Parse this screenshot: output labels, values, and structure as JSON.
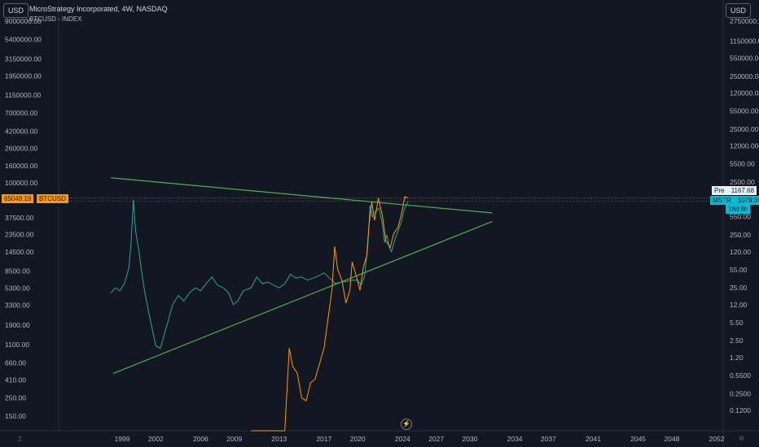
{
  "header": {
    "title": "MicroStrategy Incorporated, 4W, NASDAQ",
    "subtitle": "BTCUSD - INDEX"
  },
  "units": {
    "left": "USD",
    "right": "USD"
  },
  "chart_data": {
    "type": "line",
    "x_ticks": [
      "1999",
      "2002",
      "2006",
      "2009",
      "2013",
      "2017",
      "2020",
      "2024",
      "2027",
      "2030",
      "2034",
      "2037",
      "2041",
      "2045",
      "2048",
      "2052"
    ],
    "left_axis_ticks": [
      "9000000.00",
      "5400000.00",
      "3150000.00",
      "1950000.00",
      "1150000.00",
      "700000.00",
      "420000.00",
      "260000.00",
      "160000.00",
      "100000.00",
      "37500.00",
      "23500.00",
      "14500.00",
      "8500.00",
      "5300.00",
      "3300.00",
      "1900.00",
      "1100.00",
      "660.00",
      "410.00",
      "250.00",
      "150.00"
    ],
    "right_axis_ticks": [
      "2750000.00",
      "1150000.00",
      "550000.00",
      "250000.00",
      "120000.00",
      "55000.00",
      "25000.00",
      "12000.00",
      "5500.00",
      "2500.00",
      "550.00",
      "250.00",
      "120.00",
      "55.00",
      "25.00",
      "12.00",
      "5.50",
      "2.50",
      "1.20",
      "0.5500",
      "0.2500",
      "0.1200"
    ],
    "series": [
      {
        "name": "MSTR",
        "color": "#26a69a",
        "points": [
          [
            1998.0,
            20
          ],
          [
            1998.4,
            25
          ],
          [
            1998.8,
            22
          ],
          [
            1999.2,
            30
          ],
          [
            1999.6,
            60
          ],
          [
            1999.8,
            180
          ],
          [
            2000.0,
            1150
          ],
          [
            2000.2,
            300
          ],
          [
            2000.5,
            120
          ],
          [
            2000.8,
            40
          ],
          [
            2001.0,
            22
          ],
          [
            2001.3,
            10
          ],
          [
            2001.6,
            5
          ],
          [
            2002.0,
            2
          ],
          [
            2002.4,
            1.8
          ],
          [
            2002.6,
            2.5
          ],
          [
            2003.0,
            5
          ],
          [
            2003.5,
            12
          ],
          [
            2004.0,
            18
          ],
          [
            2004.5,
            14
          ],
          [
            2005.0,
            20
          ],
          [
            2005.5,
            25
          ],
          [
            2006.0,
            22
          ],
          [
            2006.5,
            30
          ],
          [
            2007.0,
            40
          ],
          [
            2007.5,
            28
          ],
          [
            2008.0,
            25
          ],
          [
            2008.5,
            20
          ],
          [
            2008.9,
            12
          ],
          [
            2009.3,
            14
          ],
          [
            2009.8,
            22
          ],
          [
            2010.5,
            25
          ],
          [
            2011.0,
            40
          ],
          [
            2011.5,
            30
          ],
          [
            2012.0,
            32
          ],
          [
            2012.5,
            28
          ],
          [
            2013.0,
            25
          ],
          [
            2013.5,
            30
          ],
          [
            2014.0,
            45
          ],
          [
            2014.5,
            38
          ],
          [
            2015.0,
            40
          ],
          [
            2015.5,
            35
          ],
          [
            2016.0,
            38
          ],
          [
            2016.5,
            42
          ],
          [
            2017.0,
            48
          ],
          [
            2017.5,
            38
          ],
          [
            2018.0,
            30
          ],
          [
            2018.5,
            32
          ],
          [
            2019.0,
            33
          ],
          [
            2019.5,
            35
          ],
          [
            2020.0,
            35
          ],
          [
            2020.3,
            28
          ],
          [
            2020.6,
            40
          ],
          [
            2020.9,
            150
          ],
          [
            2021.1,
            900
          ],
          [
            2021.3,
            550
          ],
          [
            2021.6,
            700
          ],
          [
            2021.9,
            800
          ],
          [
            2022.2,
            400
          ],
          [
            2022.4,
            180
          ],
          [
            2022.6,
            250
          ],
          [
            2022.8,
            150
          ],
          [
            2023.0,
            120
          ],
          [
            2023.3,
            200
          ],
          [
            2023.6,
            300
          ],
          [
            2023.9,
            450
          ],
          [
            2024.1,
            700
          ],
          [
            2024.3,
            900
          ],
          [
            2024.5,
            1079.39
          ]
        ]
      },
      {
        "name": "BTCUSD",
        "color": "#ff9800",
        "points": [
          [
            2010.5,
            0.06
          ],
          [
            2010.7,
            0.1
          ],
          [
            2011.0,
            0.3
          ],
          [
            2011.4,
            15
          ],
          [
            2011.7,
            5
          ],
          [
            2012.0,
            4
          ],
          [
            2012.4,
            6
          ],
          [
            2012.8,
            12
          ],
          [
            2013.2,
            80
          ],
          [
            2013.5,
            100
          ],
          [
            2013.9,
            1000
          ],
          [
            2014.2,
            600
          ],
          [
            2014.6,
            500
          ],
          [
            2015.0,
            250
          ],
          [
            2015.4,
            230
          ],
          [
            2015.8,
            380
          ],
          [
            2016.2,
            420
          ],
          [
            2016.6,
            650
          ],
          [
            2017.0,
            1000
          ],
          [
            2017.4,
            2500
          ],
          [
            2017.7,
            5000
          ],
          [
            2017.95,
            17000
          ],
          [
            2018.2,
            9000
          ],
          [
            2018.6,
            6500
          ],
          [
            2018.95,
            3500
          ],
          [
            2019.3,
            5000
          ],
          [
            2019.5,
            11000
          ],
          [
            2019.9,
            7200
          ],
          [
            2020.2,
            5000
          ],
          [
            2020.5,
            9500
          ],
          [
            2020.8,
            13000
          ],
          [
            2021.0,
            30000
          ],
          [
            2021.25,
            58000
          ],
          [
            2021.5,
            35000
          ],
          [
            2021.85,
            65000
          ],
          [
            2022.2,
            40000
          ],
          [
            2022.5,
            20000
          ],
          [
            2022.9,
            16500
          ],
          [
            2023.2,
            24000
          ],
          [
            2023.6,
            29000
          ],
          [
            2023.9,
            42000
          ],
          [
            2024.2,
            68000
          ],
          [
            2024.5,
            65048.19
          ]
        ]
      }
    ],
    "trendlines": [
      {
        "color": "#4caf50",
        "from": [
          1998.0,
          3000
        ],
        "to": [
          2032.0,
          650
        ]
      },
      {
        "color": "#4caf50",
        "from": [
          1998.2,
          0.6
        ],
        "to": [
          2032.0,
          450
        ]
      }
    ],
    "last_values": {
      "btc": "65048.19",
      "btc_name": "BTCUSD",
      "pre_label": "Pre",
      "pre_value": "1167.68",
      "mstr_name": "MSTR",
      "mstr_value": "1079.39",
      "countdown": "18d 9h"
    }
  },
  "footer": {
    "timezone_icon": "lightning-icon",
    "left_corner": "Z"
  }
}
